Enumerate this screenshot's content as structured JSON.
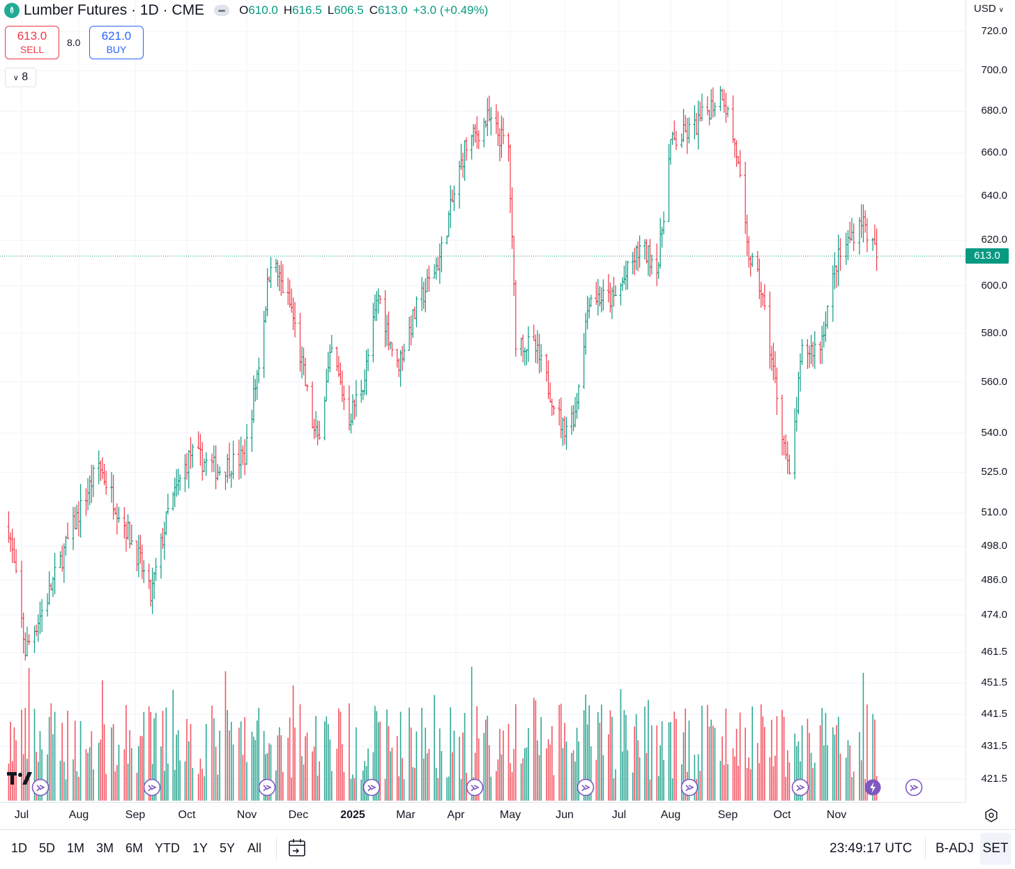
{
  "legend": {
    "title": "Lumber Futures · 1D · CME",
    "ohlc": [
      {
        "key": "O",
        "value": "610.0"
      },
      {
        "key": "H",
        "value": "616.5"
      },
      {
        "key": "L",
        "value": "606.5"
      },
      {
        "key": "C",
        "value": "613.0"
      },
      {
        "key": "",
        "value": "+3.0 (+0.49%)"
      }
    ]
  },
  "trade": {
    "sell_price": "613.0",
    "sell_label": "SELL",
    "spread": "8.0",
    "buy_price": "621.0",
    "buy_label": "BUY"
  },
  "indicator_toggle": "8",
  "price_scale": {
    "currency": "USD",
    "last_price": "613.0",
    "ticks": [
      "720.0",
      "700.0",
      "680.0",
      "660.0",
      "640.0",
      "620.0",
      "600.0",
      "580.0",
      "560.0",
      "540.0",
      "525.0",
      "510.0",
      "498.0",
      "486.0",
      "474.0",
      "461.5",
      "451.5",
      "441.5",
      "431.5",
      "421.5"
    ]
  },
  "time_axis": {
    "labels": [
      "Jul",
      "Aug",
      "Sep",
      "Oct",
      "Nov",
      "Dec",
      "2025",
      "Mar",
      "Apr",
      "May",
      "Jun",
      "Jul",
      "Aug",
      "Sep",
      "Oct",
      "Nov"
    ]
  },
  "bottom_bar": {
    "ranges": [
      "1D",
      "5D",
      "1M",
      "3M",
      "6M",
      "YTD",
      "1Y",
      "5Y",
      "All"
    ],
    "clock": "23:49:17 UTC",
    "adjust": "B-ADJ",
    "session": "SET"
  },
  "colors": {
    "up": "#089981",
    "down": "#f23645",
    "grid": "#f0f3fa",
    "event": "#7e57c2"
  },
  "chart_data": {
    "type": "ohlc-bar",
    "scale": "log",
    "series": [
      {
        "anchors": [
          {
            "date": "2024-06-24",
            "close": 505
          },
          {
            "date": "2024-07-03",
            "close": 462
          },
          {
            "date": "2024-07-15",
            "close": 480
          },
          {
            "date": "2024-07-29",
            "close": 505
          },
          {
            "date": "2024-08-12",
            "close": 528
          },
          {
            "date": "2024-08-22",
            "close": 512
          },
          {
            "date": "2024-09-03",
            "close": 494
          },
          {
            "date": "2024-09-10",
            "close": 480
          },
          {
            "date": "2024-09-20",
            "close": 510
          },
          {
            "date": "2024-10-03",
            "close": 532
          },
          {
            "date": "2024-10-17",
            "close": 526
          },
          {
            "date": "2024-10-31",
            "close": 531
          },
          {
            "date": "2024-11-08",
            "close": 568
          },
          {
            "date": "2024-11-15",
            "close": 612
          },
          {
            "date": "2024-11-27",
            "close": 590
          },
          {
            "date": "2024-12-10",
            "close": 540
          },
          {
            "date": "2024-12-12",
            "close": 538
          },
          {
            "date": "2024-12-20",
            "close": 572
          },
          {
            "date": "2024-12-30",
            "close": 546
          },
          {
            "date": "2025-01-08",
            "close": 562
          },
          {
            "date": "2025-01-16",
            "close": 596
          },
          {
            "date": "2025-01-27",
            "close": 566
          },
          {
            "date": "2025-02-07",
            "close": 590
          },
          {
            "date": "2025-02-20",
            "close": 612
          },
          {
            "date": "2025-03-06",
            "close": 662
          },
          {
            "date": "2025-03-19",
            "close": 676
          },
          {
            "date": "2025-03-31",
            "close": 662
          },
          {
            "date": "2025-04-02",
            "close": 618
          },
          {
            "date": "2025-04-04",
            "close": 578
          },
          {
            "date": "2025-04-15",
            "close": 573
          },
          {
            "date": "2025-04-30",
            "close": 542
          },
          {
            "date": "2025-05-07",
            "close": 548
          },
          {
            "date": "2025-05-15",
            "close": 596
          },
          {
            "date": "2025-05-29",
            "close": 594
          },
          {
            "date": "2025-06-13",
            "close": 616
          },
          {
            "date": "2025-06-24",
            "close": 610
          },
          {
            "date": "2025-07-01",
            "close": 664
          },
          {
            "date": "2025-07-14",
            "close": 672
          },
          {
            "date": "2025-07-29",
            "close": 690
          },
          {
            "date": "2025-08-06",
            "close": 660
          },
          {
            "date": "2025-08-12",
            "close": 616
          },
          {
            "date": "2025-08-20",
            "close": 598
          },
          {
            "date": "2025-08-28",
            "close": 560
          },
          {
            "date": "2025-09-05",
            "close": 522
          },
          {
            "date": "2025-09-12",
            "close": 572
          },
          {
            "date": "2025-09-22",
            "close": 575
          },
          {
            "date": "2025-10-01",
            "close": 610
          },
          {
            "date": "2025-10-14",
            "close": 630
          },
          {
            "date": "2025-10-22",
            "close": 613
          }
        ]
      }
    ],
    "x_range": [
      "2024-06-24",
      "2025-11-18"
    ],
    "ylim": [
      415,
      728
    ],
    "volume_pane": true,
    "grid": true
  }
}
